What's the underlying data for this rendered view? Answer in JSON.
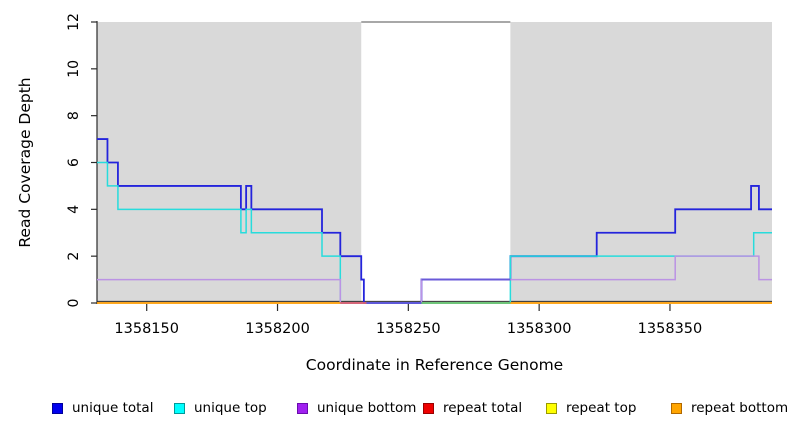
{
  "chart_data": {
    "type": "line",
    "title": "",
    "xlabel": "Coordinate in Reference Genome",
    "ylabel": "Read Coverage Depth",
    "xlim": [
      1358131,
      1358389
    ],
    "ylim": [
      0,
      12
    ],
    "x_ticks": [
      1358150,
      1358200,
      1358250,
      1358300,
      1358350
    ],
    "y_ticks": [
      0,
      2,
      4,
      6,
      8,
      10,
      12
    ],
    "grid": false,
    "legend_position": "bottom",
    "background_bands": {
      "color": "#d9d9d9",
      "regions": [
        [
          1358131,
          1358232
        ],
        [
          1358289,
          1358389
        ]
      ]
    },
    "gap_top_line": {
      "color": "#8c8c8c",
      "y": 12,
      "x": [
        1358232,
        1358289
      ]
    },
    "axis_color": "#2b2b2b",
    "series": [
      {
        "name": "unique total",
        "color": "#2424dc",
        "width": 1.8,
        "paths": [
          {
            "steps": [
              [
                1358131,
                7
              ],
              [
                1358135,
                6
              ],
              [
                1358139,
                5
              ],
              [
                1358186,
                4
              ],
              [
                1358188,
                5
              ],
              [
                1358190,
                4
              ],
              [
                1358217,
                3
              ],
              [
                1358224,
                2
              ],
              [
                1358232,
                1
              ],
              [
                1358233,
                0
              ],
              [
                1358255,
                1
              ],
              [
                1358289,
                2
              ],
              [
                1358322,
                3
              ],
              [
                1358352,
                4
              ],
              [
                1358381,
                5
              ],
              [
                1358384,
                4
              ]
            ],
            "end": 1358389
          }
        ]
      },
      {
        "name": "unique top",
        "color": "#27dcdc",
        "width": 1.5,
        "paths": [
          {
            "steps": [
              [
                1358131,
                6
              ],
              [
                1358135,
                5
              ],
              [
                1358139,
                4
              ],
              [
                1358186,
                3
              ],
              [
                1358188,
                4
              ],
              [
                1358190,
                3
              ],
              [
                1358217,
                2
              ],
              [
                1358224,
                0
              ],
              [
                1358289,
                2
              ],
              [
                1358382,
                3
              ]
            ],
            "end": 1358389
          }
        ]
      },
      {
        "name": "unique bottom",
        "color": "#bb93e4",
        "width": 1.5,
        "paths": [
          {
            "steps": [
              [
                1358131,
                1
              ],
              [
                1358224,
                0
              ],
              [
                1358255,
                1
              ],
              [
                1358352,
                2
              ],
              [
                1358384,
                1
              ]
            ],
            "end": 1358389
          }
        ]
      },
      {
        "name": "repeat bottom",
        "color": "#ff9d00",
        "width": 1.8,
        "paths": [
          {
            "steps": [
              [
                1358131,
                0
              ]
            ],
            "end": 1358224
          },
          {
            "steps": [
              [
                1358289,
                0
              ]
            ],
            "end": 1358389
          }
        ]
      }
    ],
    "baseline_overlays": [
      {
        "x": [
          1358224,
          1358234
        ],
        "y": 0,
        "color": "#dc5a6a"
      },
      {
        "x": [
          1358234,
          1358255
        ],
        "y": 0,
        "color": "#5a50d8"
      },
      {
        "x": [
          1358255,
          1358289
        ],
        "y": 0,
        "color": "#6abf69"
      },
      {
        "x": [
          1358255,
          1358289
        ],
        "y": 1,
        "color": "#6a5ad8"
      }
    ],
    "legend": [
      {
        "label": "unique total",
        "fill": "#0000ee",
        "border": "#00009a"
      },
      {
        "label": "unique top",
        "fill": "#00ffff",
        "border": "#009a9a"
      },
      {
        "label": "unique bottom",
        "fill": "#a020f0",
        "border": "#6a0dad"
      },
      {
        "label": "repeat total",
        "fill": "#ee0000",
        "border": "#9a0000"
      },
      {
        "label": "repeat top",
        "fill": "#ffff00",
        "border": "#9a9a00"
      },
      {
        "label": "repeat bottom",
        "fill": "#ffa500",
        "border": "#b06800"
      }
    ]
  }
}
